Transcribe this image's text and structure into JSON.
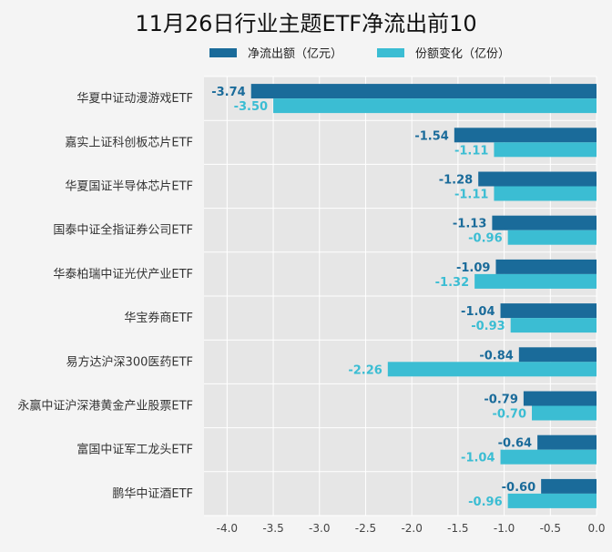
{
  "chart_data": {
    "type": "bar",
    "orientation": "horizontal",
    "title": "11月26日行业主题ETF净流出前10",
    "categories": [
      "华夏中证动漫游戏ETF",
      "嘉实上证科创板芯片ETF",
      "华夏国证半导体芯片ETF",
      "国泰中证全指证券公司ETF",
      "华泰柏瑞中证光伏产业ETF",
      "华宝券商ETF",
      "易方达沪深300医药ETF",
      "永赢中证沪深港黄金产业股票ETF",
      "富国中证军工龙头ETF",
      "鹏华中证酒ETF"
    ],
    "series": [
      {
        "name": "净流出额（亿元）",
        "color": "#1a6b9a",
        "values": [
          -3.74,
          -1.54,
          -1.28,
          -1.13,
          -1.09,
          -1.04,
          -0.84,
          -0.79,
          -0.64,
          -0.6
        ],
        "labels": [
          "-3.74",
          "-1.54",
          "-1.28",
          "-1.13",
          "-1.09",
          "-1.04",
          "-0.84",
          "-0.79",
          "-0.64",
          "-0.60"
        ]
      },
      {
        "name": "份额变化（亿份）",
        "color": "#3bbdd3",
        "values": [
          -3.5,
          -1.11,
          -1.11,
          -0.96,
          -1.32,
          -0.93,
          -2.26,
          -0.7,
          -1.04,
          -0.96
        ],
        "labels": [
          "-3.50",
          "-1.11",
          "-1.11",
          "-0.96",
          "-1.32",
          "-0.93",
          "-2.26",
          "-0.70",
          "-1.04",
          "-0.96"
        ]
      }
    ],
    "xlim": [
      -4.25,
      0
    ],
    "xticks": [
      "-4.0",
      "-3.5",
      "-3.0",
      "-2.5",
      "-2.0",
      "-1.5",
      "-1.0",
      "-0.5",
      "0.0"
    ],
    "xtick_values": [
      -4.0,
      -3.5,
      -3.0,
      -2.5,
      -2.0,
      -1.5,
      -1.0,
      -0.5,
      0.0
    ],
    "grid": true,
    "legend_position": "top"
  }
}
